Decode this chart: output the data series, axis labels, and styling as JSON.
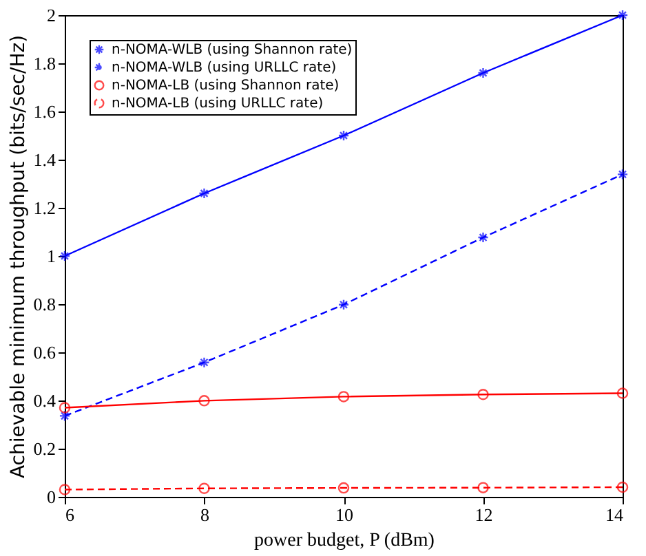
{
  "chart_data": {
    "type": "line",
    "xlabel": "power budget, P (dBm)",
    "ylabel": "Achievable minimum throughput (bits/sec/Hz)",
    "x": [
      6,
      8,
      10,
      12,
      14
    ],
    "xlim": [
      6,
      14
    ],
    "xticks": [
      6,
      8,
      10,
      12,
      14
    ],
    "ylim": [
      0,
      2
    ],
    "yticks": [
      0,
      0.2,
      0.4,
      0.6,
      0.8,
      1,
      1.2,
      1.4,
      1.6,
      1.8,
      2
    ],
    "grid": false,
    "legend": "top left",
    "series": [
      {
        "name": "n-NOMA-WLB (using Shannon rate)",
        "color": "#0000ff",
        "values": [
          1.0,
          1.26,
          1.5,
          1.76,
          2.0
        ],
        "marker": "cross",
        "line_style": "solid"
      },
      {
        "name": "n-NOMA-WLB (using URLLC rate)",
        "color": "#0000ff",
        "values": [
          0.336,
          0.558,
          0.798,
          1.077,
          1.339
        ],
        "marker": "cross",
        "line_style": "dashed"
      },
      {
        "name": "n-NOMA-LB (using Shannon rate)",
        "color": "#ff0000",
        "values": [
          0.37,
          0.399,
          0.416,
          0.425,
          0.43
        ],
        "marker": "circle",
        "line_style": "solid"
      },
      {
        "name": "n-NOMA-LB (using URLLC rate)",
        "color": "#ff0000",
        "values": [
          0.03,
          0.035,
          0.037,
          0.038,
          0.04
        ],
        "marker": "circle",
        "line_style": "dashed"
      }
    ]
  }
}
